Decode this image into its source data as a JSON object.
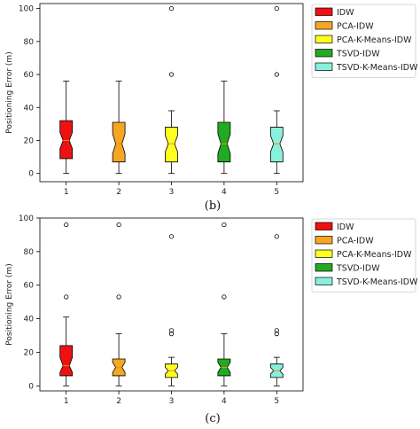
{
  "figure": {
    "captions": [
      "(b)",
      "(c)"
    ]
  },
  "chart_data": [
    {
      "type": "boxplot",
      "caption": "(b)",
      "ylabel": "Positioning Error (m)",
      "categories": [
        "1",
        "2",
        "3",
        "4",
        "5"
      ],
      "ylim": [
        -5,
        103
      ],
      "yticks": [
        0,
        20,
        40,
        60,
        80,
        100
      ],
      "legend": {
        "placement": "right",
        "entries": [
          "IDW",
          "PCA-IDW",
          "PCA-K-Means-IDW",
          "TSVD-IDW",
          "TSVD-K-Means-IDW"
        ]
      },
      "series": [
        {
          "name": "IDW",
          "color": "#ee1111",
          "min": 0,
          "q1": 9,
          "median": 20,
          "q3": 32,
          "max": 56,
          "notch": [
            15,
            25
          ],
          "outliers": []
        },
        {
          "name": "PCA-IDW",
          "color": "#f5a623",
          "min": 0,
          "q1": 7,
          "median": 18,
          "q3": 31,
          "max": 56,
          "notch": [
            12,
            24
          ],
          "outliers": []
        },
        {
          "name": "PCA-K-Means-IDW",
          "color": "#ffff22",
          "min": 0,
          "q1": 7,
          "median": 18,
          "q3": 28,
          "max": 38,
          "notch": [
            13,
            23
          ],
          "outliers": [
            60,
            100
          ]
        },
        {
          "name": "TSVD-IDW",
          "color": "#22aa22",
          "min": 0,
          "q1": 7,
          "median": 18,
          "q3": 31,
          "max": 56,
          "notch": [
            12,
            24
          ],
          "outliers": []
        },
        {
          "name": "TSVD-K-Means-IDW",
          "color": "#88f0dd",
          "min": 0,
          "q1": 7,
          "median": 18,
          "q3": 28,
          "max": 38,
          "notch": [
            13,
            23
          ],
          "outliers": [
            60,
            100
          ]
        }
      ]
    },
    {
      "type": "boxplot",
      "caption": "(c)",
      "ylabel": "Positioning Error (m)",
      "categories": [
        "1",
        "2",
        "3",
        "4",
        "5"
      ],
      "ylim": [
        -3,
        100
      ],
      "yticks": [
        0,
        20,
        40,
        60,
        80,
        100
      ],
      "legend": {
        "placement": "right",
        "entries": [
          "IDW",
          "PCA-IDW",
          "PCA-K-Means-IDW",
          "TSVD-IDW",
          "TSVD-K-Means-IDW"
        ]
      },
      "series": [
        {
          "name": "IDW",
          "color": "#ee1111",
          "min": 0,
          "q1": 6,
          "median": 12,
          "q3": 24,
          "max": 41,
          "notch": [
            8,
            17
          ],
          "outliers": [
            53,
            96
          ]
        },
        {
          "name": "PCA-IDW",
          "color": "#f5a623",
          "min": 0,
          "q1": 6,
          "median": 11,
          "q3": 16,
          "max": 31,
          "notch": [
            8,
            14
          ],
          "outliers": [
            53,
            96
          ]
        },
        {
          "name": "PCA-K-Means-IDW",
          "color": "#ffff22",
          "min": 0,
          "q1": 5,
          "median": 9,
          "q3": 13,
          "max": 17,
          "notch": [
            7,
            11
          ],
          "outliers": [
            31,
            33,
            89
          ]
        },
        {
          "name": "TSVD-IDW",
          "color": "#22aa22",
          "min": 0,
          "q1": 6,
          "median": 11,
          "q3": 16,
          "max": 31,
          "notch": [
            8,
            14
          ],
          "outliers": [
            53,
            96
          ]
        },
        {
          "name": "TSVD-K-Means-IDW",
          "color": "#88f0dd",
          "min": 0,
          "q1": 5,
          "median": 9,
          "q3": 13,
          "max": 17,
          "notch": [
            7,
            11
          ],
          "outliers": [
            31,
            33,
            89
          ]
        }
      ]
    }
  ]
}
